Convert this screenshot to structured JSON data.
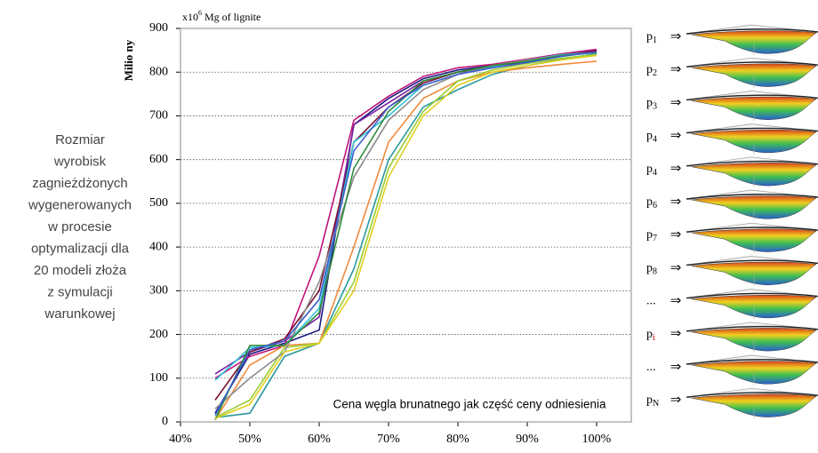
{
  "chart_data": {
    "type": "line",
    "unit_label": {
      "pre": "x10",
      "sup": "6",
      "post": " Mg of lignite"
    },
    "ylabel": "Milio ny",
    "annotation": "Cena węgla brunatnego jak część ceny odniesienia",
    "x": [
      45,
      50,
      55,
      60,
      65,
      70,
      75,
      80,
      85,
      90,
      95,
      100
    ],
    "xlim": [
      40,
      105
    ],
    "xticks": [
      {
        "value": 40,
        "label": "40%"
      },
      {
        "value": 50,
        "label": "50%"
      },
      {
        "value": 60,
        "label": "60%"
      },
      {
        "value": 70,
        "label": "70%"
      },
      {
        "value": 80,
        "label": "80%"
      },
      {
        "value": 90,
        "label": "90%"
      },
      {
        "value": 100,
        "label": "100%"
      }
    ],
    "ylim": [
      0,
      900
    ],
    "yticks": [
      0,
      100,
      200,
      300,
      400,
      500,
      600,
      700,
      800,
      900
    ],
    "grid": true,
    "series": [
      {
        "color": "#1a1a80",
        "values": [
          20,
          155,
          180,
          210,
          680,
          740,
          785,
          805,
          815,
          825,
          838,
          850
        ]
      },
      {
        "color": "#7a1fa0",
        "values": [
          110,
          160,
          185,
          240,
          680,
          730,
          780,
          800,
          815,
          828,
          840,
          848
        ]
      },
      {
        "color": "#c0147a",
        "values": [
          100,
          150,
          175,
          380,
          690,
          745,
          790,
          810,
          818,
          830,
          842,
          852
        ]
      },
      {
        "color": "#7a1030",
        "values": [
          50,
          160,
          190,
          300,
          640,
          720,
          775,
          800,
          810,
          825,
          838,
          848
        ]
      },
      {
        "color": "#2fc4d8",
        "values": [
          95,
          170,
          175,
          260,
          640,
          700,
          770,
          795,
          812,
          828,
          840,
          845
        ]
      },
      {
        "color": "#2a9aa0",
        "values": [
          10,
          20,
          150,
          180,
          350,
          600,
          720,
          760,
          795,
          815,
          830,
          842
        ]
      },
      {
        "color": "#f08a3c",
        "values": [
          5,
          130,
          175,
          180,
          400,
          640,
          740,
          780,
          800,
          810,
          818,
          825
        ]
      },
      {
        "color": "#9acd32",
        "values": [
          10,
          50,
          170,
          180,
          320,
          580,
          710,
          780,
          805,
          820,
          832,
          840
        ]
      },
      {
        "color": "#8c8c8c",
        "values": [
          30,
          100,
          160,
          320,
          560,
          690,
          760,
          795,
          815,
          828,
          838,
          845
        ]
      },
      {
        "color": "#2e8b3a",
        "values": [
          5,
          175,
          175,
          250,
          580,
          710,
          780,
          800,
          815,
          825,
          838,
          845
        ]
      },
      {
        "color": "#3a5fcd",
        "values": [
          15,
          165,
          185,
          280,
          620,
          720,
          770,
          795,
          810,
          822,
          836,
          846
        ]
      },
      {
        "color": "#e0d020",
        "values": [
          8,
          40,
          160,
          180,
          300,
          560,
          700,
          770,
          800,
          815,
          828,
          838
        ]
      }
    ]
  },
  "side_text": [
    "Rozmiar",
    "wyrobisk",
    "zagnieżdżonych",
    "wygenerowanych",
    "w procesie",
    "optymalizacji dla",
    "20 modeli złoża",
    "z symulacji",
    "warunkowej"
  ],
  "arrow": "⇒",
  "pits": [
    {
      "base": "p",
      "sub": "1"
    },
    {
      "base": "p",
      "sub": "2"
    },
    {
      "base": "p",
      "sub": "3"
    },
    {
      "base": "p",
      "sub": "4"
    },
    {
      "base": "p",
      "sub": "4"
    },
    {
      "base": "p",
      "sub": "6"
    },
    {
      "base": "p",
      "sub": "7"
    },
    {
      "base": "p",
      "sub": "8"
    },
    {
      "base": "..."
    },
    {
      "base": "p",
      "sub": "i"
    },
    {
      "base": "..."
    },
    {
      "base": "p",
      "sub": "N"
    }
  ]
}
